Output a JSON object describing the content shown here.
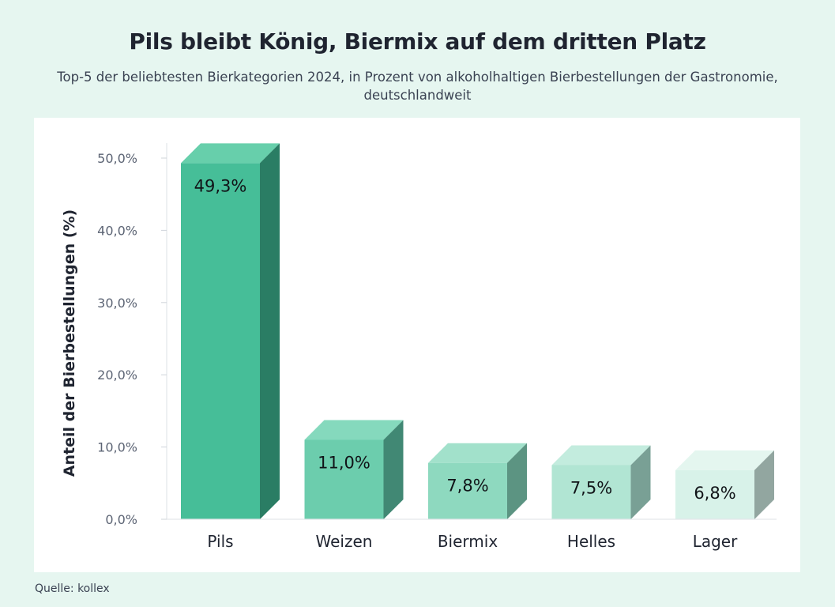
{
  "header": {
    "title": "Pils bleibt König, Biermix auf dem dritten Platz",
    "subtitle": "Top-5 der beliebtesten Bierkategorien 2024, in Prozent von alkoholhaltigen Bierbestellungen der Gastronomie, deutschlandweit"
  },
  "footer": {
    "source": "Quelle: kollex"
  },
  "chart_data": {
    "type": "bar",
    "title": "Pils bleibt König, Biermix auf dem dritten Platz",
    "xlabel": "",
    "ylabel": "Anteil der Bierbestellungen (%)",
    "ylim": [
      0,
      50
    ],
    "yticks": [
      0,
      10,
      20,
      30,
      40,
      50
    ],
    "ytick_labels": [
      "0,0%",
      "10,0%",
      "20,0%",
      "30,0%",
      "40,0%",
      "50,0%"
    ],
    "categories": [
      "Pils",
      "Weizen",
      "Biermix",
      "Helles",
      "Lager"
    ],
    "values": [
      49.3,
      11.0,
      7.8,
      7.5,
      6.8
    ],
    "value_labels": [
      "49,3%",
      "11,0%",
      "7,8%",
      "7,5%",
      "6,8%"
    ],
    "grid": false,
    "legend": "none",
    "colors": {
      "front": [
        "#46be98",
        "#6ccdad",
        "#8ed9bf",
        "#b1e5d3",
        "#d8f2e9"
      ],
      "top": [
        "#67cfab",
        "#85d9bd",
        "#a2e1cb",
        "#c3ecde",
        "#e4f6ef"
      ],
      "side": [
        "#2a7d64",
        "#418874",
        "#5c9482",
        "#79a095",
        "#92a6a0"
      ]
    }
  }
}
